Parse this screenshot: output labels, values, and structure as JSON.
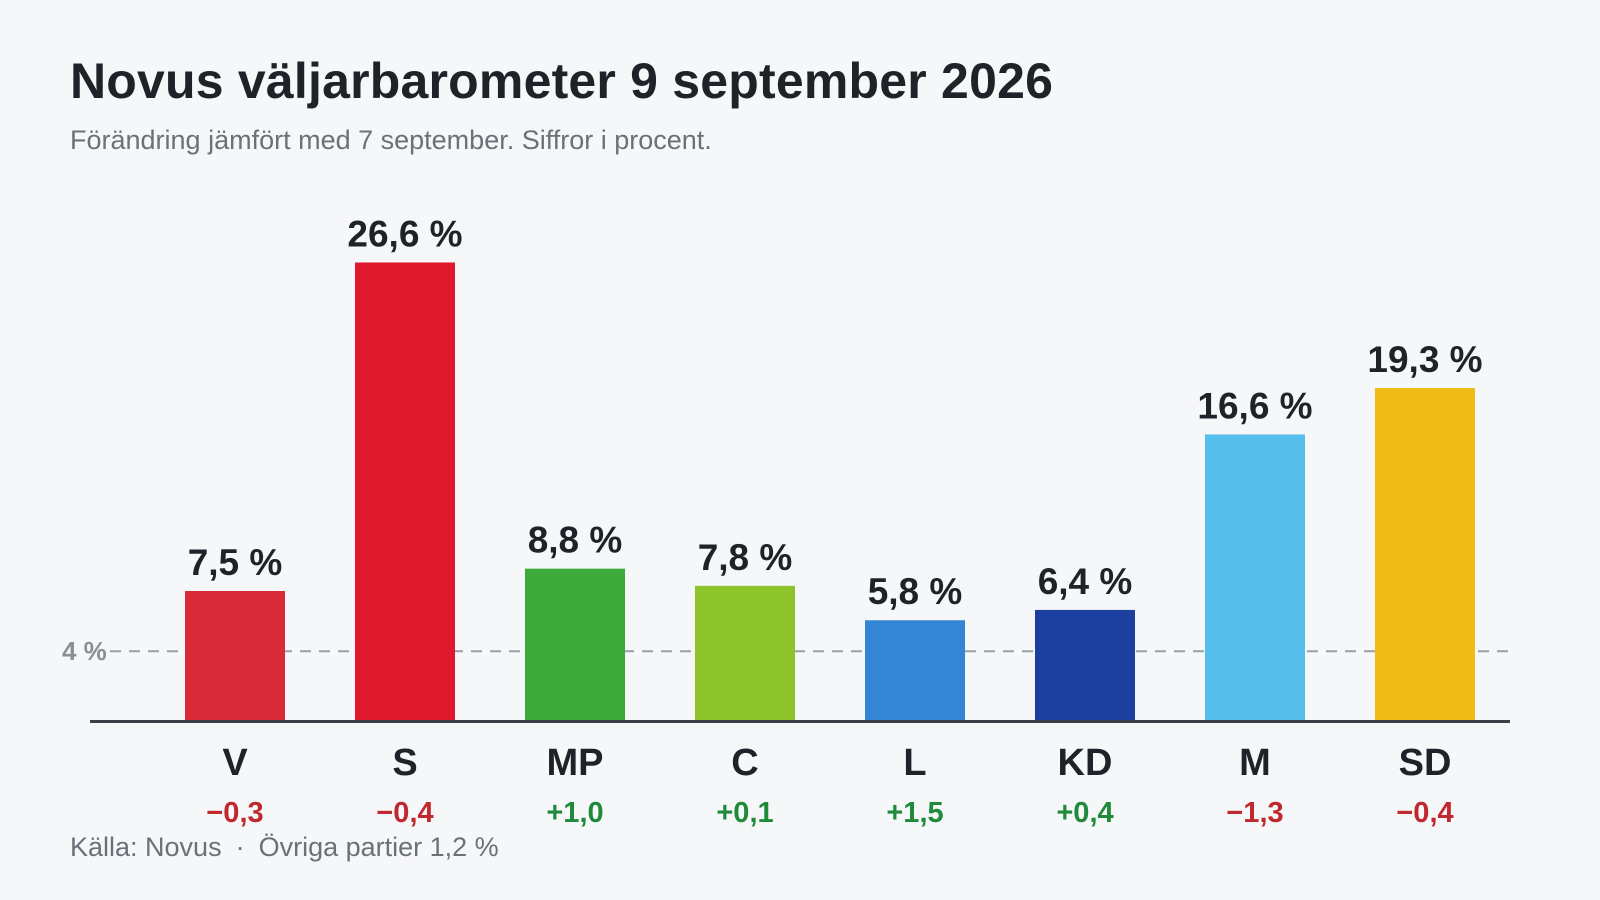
{
  "header": {
    "title": "Novus väljarbarometer 9 september 2026",
    "subtitle": "Förändring jämfört med 7 september. Siffror i procent."
  },
  "chart_data": {
    "type": "bar",
    "title": "Novus väljarbarometer 9 september 2026",
    "subtitle": "Förändring jämfört med 7 september. Siffror i procent.",
    "categories": [
      "V",
      "S",
      "MP",
      "C",
      "L",
      "KD",
      "M",
      "SD"
    ],
    "values": [
      7.5,
      26.6,
      8.8,
      7.8,
      5.8,
      6.4,
      16.6,
      19.3
    ],
    "value_labels": [
      "7,5 %",
      "26,6 %",
      "8,8 %",
      "7,8 %",
      "5,8 %",
      "6,4 %",
      "16,6 %",
      "19,3 %"
    ],
    "changes": [
      -0.3,
      -0.4,
      1.0,
      0.1,
      1.5,
      0.4,
      -1.3,
      -0.4
    ],
    "change_labels": [
      "−0,3",
      "−0,4",
      "+1,0",
      "+0,1",
      "+1,5",
      "+0,4",
      "−1,3",
      "−0,4"
    ],
    "colors": [
      "#d92b3a",
      "#e0182d",
      "#3faa3c",
      "#8dc42c",
      "#3585d6",
      "#1c40a0",
      "#55bde9",
      "#efbc17"
    ],
    "change_colors": {
      "up": "#1e8a3a",
      "down": "#c0282d"
    },
    "threshold": {
      "value": 4,
      "label": "4 %"
    },
    "ylim": [
      0,
      30
    ],
    "xlabel": "",
    "ylabel": "",
    "grid": false,
    "legend": "none"
  },
  "footer": {
    "source": "Källa: Novus",
    "separator": "·",
    "others": "Övriga partier 1,2 %"
  }
}
